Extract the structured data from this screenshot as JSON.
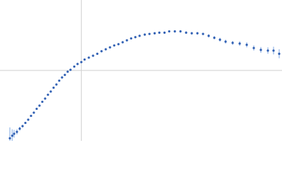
{
  "chart_data": {
    "type": "scatter",
    "xlim": [
      0,
      6
    ],
    "ylim": [
      0,
      2.2
    ],
    "reference_x": 1.73,
    "reference_y": 1.1,
    "x": [
      0.21,
      0.26,
      0.3,
      0.36,
      0.42,
      0.48,
      0.54,
      0.6,
      0.66,
      0.72,
      0.78,
      0.84,
      0.9,
      0.96,
      1.02,
      1.08,
      1.14,
      1.2,
      1.26,
      1.32,
      1.38,
      1.44,
      1.5,
      1.58,
      1.65,
      1.73,
      1.8,
      1.89,
      1.98,
      2.07,
      2.16,
      2.25,
      2.34,
      2.43,
      2.52,
      2.61,
      2.7,
      2.79,
      2.88,
      2.97,
      3.08,
      3.18,
      3.29,
      3.39,
      3.5,
      3.6,
      3.72,
      3.84,
      3.96,
      4.08,
      4.2,
      4.32,
      4.44,
      4.56,
      4.68,
      4.8,
      4.95,
      5.1,
      5.25,
      5.4,
      5.55,
      5.7,
      5.82,
      5.94
    ],
    "series": [
      {
        "color": "#2f5fb3",
        "error_color": "#a9c4ec",
        "values": [
          0.04,
          0.08,
          0.11,
          0.14,
          0.19,
          0.23,
          0.28,
          0.33,
          0.39,
          0.44,
          0.5,
          0.55,
          0.61,
          0.66,
          0.72,
          0.77,
          0.83,
          0.88,
          0.94,
          0.99,
          1.03,
          1.08,
          1.11,
          1.16,
          1.2,
          1.23,
          1.27,
          1.3,
          1.33,
          1.36,
          1.4,
          1.43,
          1.46,
          1.49,
          1.51,
          1.54,
          1.57,
          1.6,
          1.62,
          1.64,
          1.66,
          1.67,
          1.68,
          1.69,
          1.69,
          1.71,
          1.71,
          1.71,
          1.69,
          1.68,
          1.68,
          1.67,
          1.64,
          1.61,
          1.58,
          1.55,
          1.53,
          1.52,
          1.5,
          1.45,
          1.42,
          1.41,
          1.41,
          1.36
        ],
        "errors": [
          0.17,
          0.1,
          0.06,
          0.04,
          0.03,
          0.02,
          0.015,
          0.01,
          0.01,
          0.01,
          0.01,
          0.01,
          0.01,
          0.01,
          0.01,
          0.01,
          0.01,
          0.01,
          0.01,
          0.01,
          0.01,
          0.01,
          0.01,
          0.01,
          0.01,
          0.01,
          0.01,
          0.01,
          0.01,
          0.01,
          0.01,
          0.01,
          0.01,
          0.01,
          0.01,
          0.01,
          0.01,
          0.01,
          0.01,
          0.01,
          0.015,
          0.015,
          0.015,
          0.015,
          0.015,
          0.015,
          0.02,
          0.02,
          0.02,
          0.02,
          0.02,
          0.02,
          0.025,
          0.025,
          0.03,
          0.03,
          0.03,
          0.035,
          0.04,
          0.04,
          0.045,
          0.05,
          0.06,
          0.07
        ]
      }
    ]
  }
}
